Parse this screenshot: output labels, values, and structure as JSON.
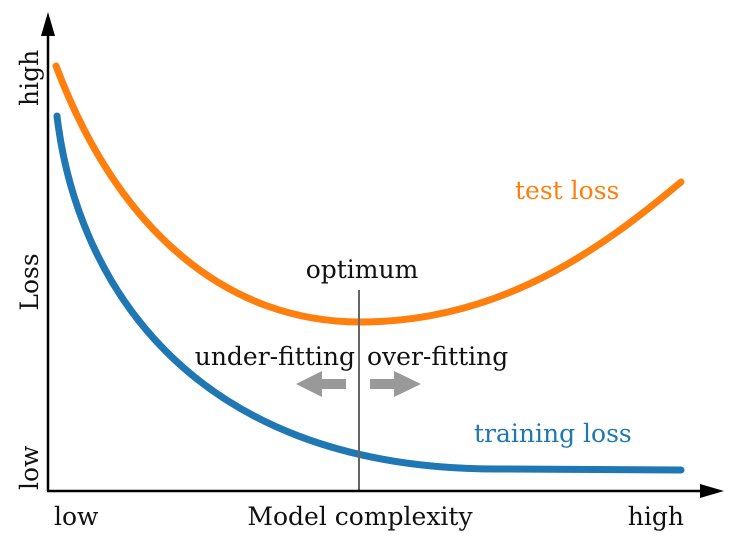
{
  "x_axis": {
    "label": "Model complexity",
    "low_label": "low",
    "high_label": "high"
  },
  "y_axis": {
    "label": "Loss",
    "low_label": "low",
    "high_label": "high"
  },
  "optimum": {
    "label": "optimum",
    "left_label": "under-fitting",
    "right_label": "over-fitting"
  },
  "curves": {
    "test": {
      "label": "test loss",
      "color": "#ff7f0e"
    },
    "training": {
      "label": "training loss",
      "color": "#1f77b4"
    }
  },
  "colors": {
    "axis": "#000000",
    "optimum_line": "#666666",
    "arrows": "#999999"
  }
}
